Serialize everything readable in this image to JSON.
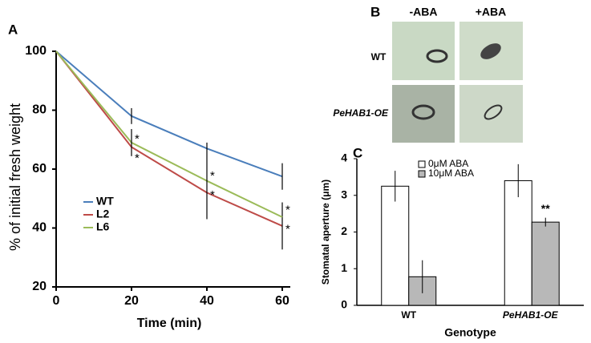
{
  "chart_data": [
    {
      "type": "line",
      "label": "A",
      "x": [
        0,
        20,
        40,
        60
      ],
      "series": [
        {
          "name": "WT",
          "color": "#4a7ebb",
          "values": [
            100,
            78,
            67,
            57.5
          ],
          "errors": [
            0,
            2.7,
            0,
            4.5
          ]
        },
        {
          "name": "L2",
          "color": "#be4b48",
          "values": [
            100,
            67.5,
            52,
            40.7
          ],
          "errors": [
            0,
            0,
            0,
            8
          ]
        },
        {
          "name": "L6",
          "color": "#9bbb59",
          "values": [
            100,
            69,
            56,
            43.7
          ],
          "errors": [
            0,
            4.6,
            13,
            0
          ]
        }
      ],
      "xlabel": "Time  (min)",
      "ylabel": "% of initial fresh weight",
      "xlim": [
        0,
        60
      ],
      "xticks": [
        0,
        20,
        40,
        60
      ],
      "ylim": [
        20,
        100
      ],
      "yticks": [
        20,
        40,
        60,
        80,
        100
      ],
      "annotations": [
        {
          "text": "*",
          "x": 20,
          "y": 70
        },
        {
          "text": "*",
          "x": 20,
          "y": 63.5
        },
        {
          "text": "*",
          "x": 40,
          "y": 57.5
        },
        {
          "text": "*",
          "x": 40,
          "y": 51
        },
        {
          "text": "*",
          "x": 60,
          "y": 46
        },
        {
          "text": "*",
          "x": 60,
          "y": 39.5
        }
      ]
    },
    {
      "type": "bar",
      "label": "C",
      "categories": [
        "WT",
        "PeHAB1-OE"
      ],
      "series": [
        {
          "name": "0μM ABA",
          "color": "#ffffff",
          "values": [
            3.25,
            3.4
          ],
          "errors": [
            0.42,
            0.45
          ]
        },
        {
          "name": "10μM ABA",
          "color": "#b8b8b8",
          "values": [
            0.78,
            2.27
          ],
          "errors": [
            0.45,
            0.12
          ]
        }
      ],
      "xlabel": "Genotype",
      "ylabel": "Stomatal aperture (μm)",
      "ylim": [
        0,
        4
      ],
      "yticks": [
        0,
        1,
        2,
        3,
        4
      ],
      "annotations": [
        {
          "text": "**",
          "category": 1,
          "series": 1,
          "y": 2.62
        }
      ]
    }
  ],
  "micrographs": {
    "label": "B",
    "columns": [
      "-ABA",
      "+ABA"
    ],
    "rows": [
      "WT",
      "PeHAB1-OE"
    ]
  }
}
